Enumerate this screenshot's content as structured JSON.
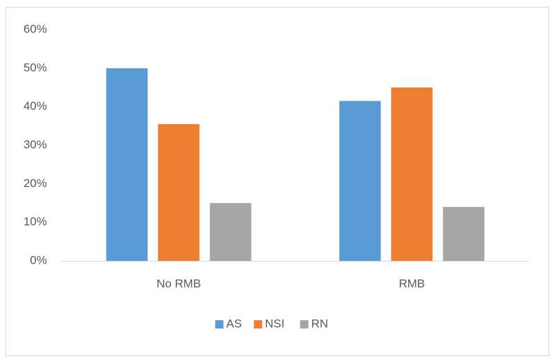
{
  "chart_data": {
    "type": "bar",
    "categories": [
      "No RMB",
      "RMB"
    ],
    "series": [
      {
        "name": "AS",
        "color": "#5b9bd5",
        "values": [
          50,
          41.5
        ]
      },
      {
        "name": "NSI",
        "color": "#ed7d31",
        "values": [
          35.5,
          45
        ]
      },
      {
        "name": "RN",
        "color": "#a5a5a5",
        "values": [
          15,
          14
        ]
      }
    ],
    "ylim": [
      0,
      60
    ],
    "yticks": [
      {
        "value": 0,
        "label": "0%"
      },
      {
        "value": 10,
        "label": "10%"
      },
      {
        "value": 20,
        "label": "20%"
      },
      {
        "value": 30,
        "label": "30%"
      },
      {
        "value": 40,
        "label": "40%"
      },
      {
        "value": 50,
        "label": "50%"
      },
      {
        "value": 60,
        "label": "60%"
      }
    ],
    "grid": false,
    "legend": "bottom"
  }
}
